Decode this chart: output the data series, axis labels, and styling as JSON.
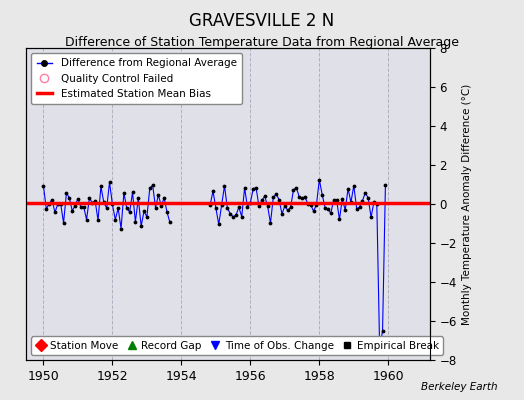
{
  "title": "GRAVESVILLE 2 N",
  "subtitle": "Difference of Station Temperature Data from Regional Average",
  "ylabel": "Monthly Temperature Anomaly Difference (°C)",
  "xlim": [
    1949.5,
    1961.2
  ],
  "ylim": [
    -8,
    8
  ],
  "yticks": [
    -8,
    -6,
    -4,
    -2,
    0,
    2,
    4,
    6,
    8
  ],
  "xticks": [
    1950,
    1952,
    1954,
    1956,
    1958,
    1960
  ],
  "bg_color": "#e8e8e8",
  "plot_bg_color": "#e0e0e8",
  "grid_color": "#b0b0c0",
  "title_fontsize": 12,
  "subtitle_fontsize": 9,
  "watermark": "Berkeley Earth",
  "legend1_labels": [
    "Difference from Regional Average",
    "Quality Control Failed",
    "Estimated Station Mean Bias"
  ],
  "legend2_labels": [
    "Station Move",
    "Record Gap",
    "Time of Obs. Change",
    "Empirical Break"
  ],
  "seed": 42,
  "gap_start": 1953.75,
  "gap_end": 1954.75,
  "dip_year": 1959.83,
  "dip_value": -7.5,
  "bias_y": 0.05
}
